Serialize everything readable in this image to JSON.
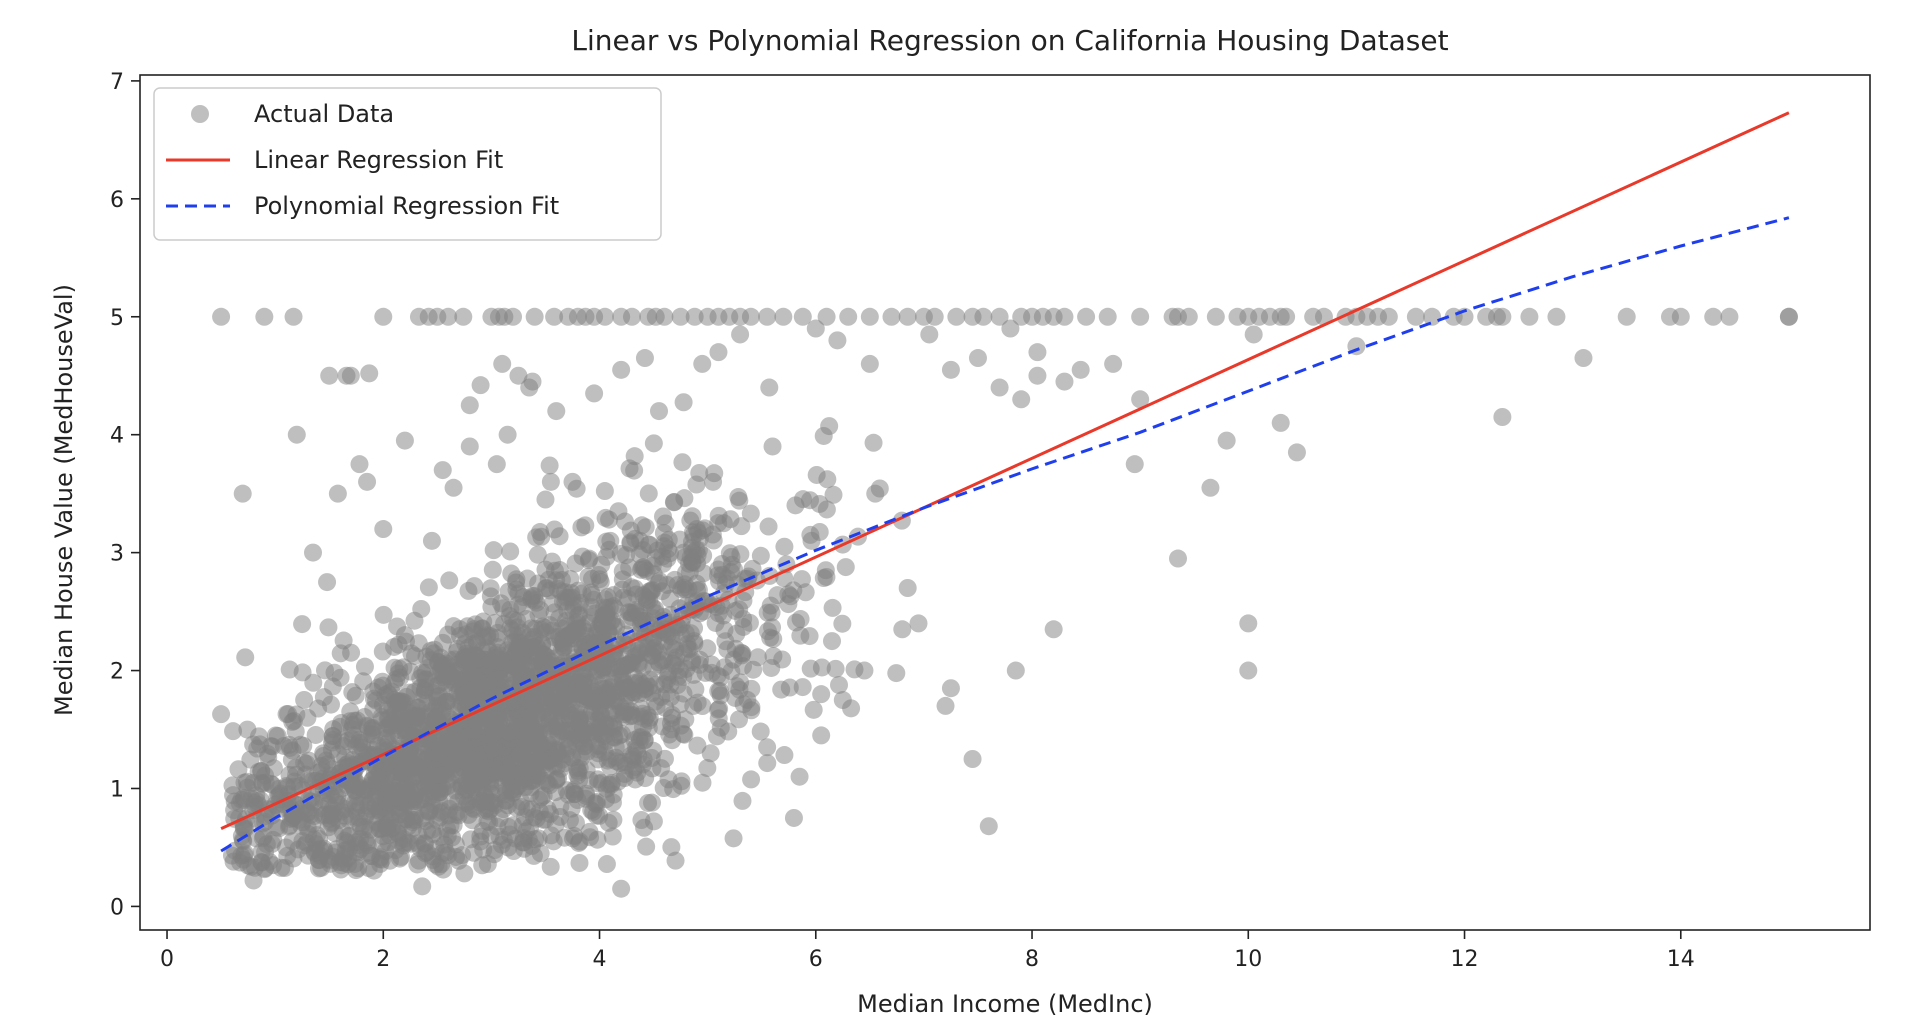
{
  "chart_data": {
    "type": "scatter",
    "title": "Linear vs Polynomial Regression on California Housing Dataset",
    "xlabel": "Median Income (MedInc)",
    "ylabel": "Median House Value (MedHouseVal)",
    "xlim": [
      -0.25,
      15.75
    ],
    "ylim": [
      -0.2,
      7.05
    ],
    "xticks": [
      0,
      2,
      4,
      6,
      8,
      10,
      12,
      14
    ],
    "yticks": [
      0,
      1,
      2,
      3,
      4,
      5,
      6,
      7
    ],
    "legend_position": "top-left",
    "grid": false,
    "series": [
      {
        "name": "Actual Data",
        "kind": "scatter",
        "color": "#808080",
        "opacity": 0.5,
        "x": [
          0.5,
          0.9,
          1.17,
          2.0,
          2.33,
          2.42,
          2.5,
          2.6,
          2.74,
          3.0,
          3.07,
          3.12,
          3.2,
          3.4,
          3.58,
          3.71,
          3.8,
          3.87,
          3.95,
          4.05,
          4.2,
          4.3,
          4.45,
          4.52,
          4.6,
          4.75,
          4.88,
          5.0,
          5.1,
          5.2,
          5.3,
          5.4,
          5.55,
          5.7,
          5.88,
          6.1,
          6.3,
          6.5,
          6.7,
          6.85,
          7.0,
          7.1,
          7.3,
          7.45,
          7.55,
          7.7,
          7.9,
          8.0,
          8.1,
          8.2,
          8.3,
          8.5,
          8.7,
          9.0,
          9.3,
          9.35,
          9.45,
          9.7,
          9.9,
          10.0,
          10.1,
          10.2,
          10.3,
          10.35,
          10.6,
          10.7,
          10.9,
          11.0,
          11.1,
          11.2,
          11.3,
          11.55,
          11.7,
          11.9,
          12.0,
          12.2,
          12.3,
          12.35,
          12.6,
          12.85,
          13.5,
          13.9,
          14.0,
          14.3,
          14.45,
          15.0,
          15.0,
          1.66,
          1.87,
          3.1,
          3.38,
          2.8,
          2.9,
          3.25,
          3.6,
          3.95,
          4.2,
          4.42,
          4.95,
          5.1,
          5.3,
          5.57,
          6.0,
          6.2,
          6.5,
          7.05,
          7.25,
          7.5,
          7.8,
          8.05,
          8.45,
          8.75,
          8.3,
          7.7,
          7.9,
          9.0,
          10.05,
          10.3,
          10.45,
          11.0,
          12.35,
          13.1,
          9.35,
          10.0,
          10.0,
          9.8,
          9.65,
          8.05,
          8.95,
          8.2,
          7.85,
          7.2,
          7.25,
          7.6,
          7.45,
          4.2,
          2.36,
          2.75,
          0.8,
          0.98,
          1.1,
          0.72,
          0.5,
          0.7,
          1.5,
          1.7,
          1.78,
          1.2,
          2.45,
          3.05,
          1.85,
          2.0,
          1.58,
          1.35,
          1.48,
          2.2,
          2.1,
          2.55,
          3.55,
          6.05,
          5.3,
          4.8,
          5.55,
          5.85,
          6.05,
          6.25,
          6.45,
          6.85,
          6.95,
          5.95,
          6.15,
          6.55,
          6.8,
          4.9,
          5.15,
          5.05,
          5.6,
          3.5,
          3.75,
          4.1,
          2.2,
          2.55,
          2.65,
          3.35,
          2.8,
          3.15,
          4.55
        ],
        "y": [
          5.0,
          5.0,
          5.0,
          5.0,
          5.0,
          5.0,
          5.0,
          5.0,
          5.0,
          5.0,
          5.0,
          5.0,
          5.0,
          5.0,
          5.0,
          5.0,
          5.0,
          5.0,
          5.0,
          5.0,
          5.0,
          5.0,
          5.0,
          5.0,
          5.0,
          5.0,
          5.0,
          5.0,
          5.0,
          5.0,
          5.0,
          5.0,
          5.0,
          5.0,
          5.0,
          5.0,
          5.0,
          5.0,
          5.0,
          5.0,
          5.0,
          5.0,
          5.0,
          5.0,
          5.0,
          5.0,
          5.0,
          5.0,
          5.0,
          5.0,
          5.0,
          5.0,
          5.0,
          5.0,
          5.0,
          5.0,
          5.0,
          5.0,
          5.0,
          5.0,
          5.0,
          5.0,
          5.0,
          5.0,
          5.0,
          5.0,
          5.0,
          5.0,
          5.0,
          5.0,
          5.0,
          5.0,
          5.0,
          5.0,
          5.0,
          5.0,
          5.0,
          5.0,
          5.0,
          5.0,
          5.0,
          5.0,
          5.0,
          5.0,
          5.0,
          5.0,
          5.0,
          4.5,
          4.52,
          4.6,
          4.45,
          4.25,
          4.42,
          4.5,
          4.2,
          4.35,
          4.55,
          4.65,
          4.6,
          4.7,
          4.85,
          4.4,
          4.9,
          4.8,
          4.6,
          4.85,
          4.55,
          4.65,
          4.9,
          4.7,
          4.55,
          4.6,
          4.45,
          4.4,
          4.3,
          4.3,
          4.85,
          4.1,
          3.85,
          4.75,
          4.15,
          4.65,
          2.95,
          2.4,
          2.0,
          3.95,
          3.55,
          4.5,
          3.75,
          2.35,
          2.0,
          1.7,
          1.85,
          0.68,
          1.25,
          0.15,
          0.17,
          0.28,
          0.22,
          0.35,
          0.5,
          0.45,
          1.63,
          3.5,
          4.5,
          4.5,
          3.75,
          4.0,
          3.1,
          3.75,
          3.6,
          3.2,
          3.5,
          3.0,
          2.75,
          2.3,
          2.2,
          2.05,
          3.6,
          1.45,
          1.9,
          2.55,
          1.35,
          1.1,
          1.8,
          1.75,
          2.0,
          2.7,
          2.4,
          3.15,
          2.25,
          3.5,
          2.35,
          3.2,
          3.25,
          3.6,
          3.9,
          3.45,
          3.6,
          3.1,
          3.95,
          3.7,
          3.55,
          4.4,
          3.9,
          4.0,
          4.2
        ]
      },
      {
        "name": "Linear Regression Fit",
        "kind": "line",
        "color": "#e8392a",
        "dash": "solid",
        "x": [
          0.5,
          15.0
        ],
        "y": [
          0.66,
          6.73
        ]
      },
      {
        "name": "Polynomial Regression Fit",
        "kind": "line",
        "color": "#1f3fef",
        "dash": "dashed",
        "x": [
          0.5,
          1.0,
          2.0,
          3.0,
          4.0,
          5.0,
          6.0,
          7.0,
          8.0,
          9.0,
          10.0,
          11.0,
          12.0,
          13.0,
          14.0,
          15.0
        ],
        "y": [
          0.47,
          0.75,
          1.27,
          1.76,
          2.21,
          2.63,
          3.02,
          3.38,
          3.71,
          4.02,
          4.37,
          4.72,
          5.05,
          5.34,
          5.6,
          5.84
        ]
      }
    ],
    "dense_cluster": {
      "note_kind": "procedural",
      "x_range": [
        0.6,
        6.8
      ],
      "y_center_slope": 0.36,
      "y_center_intercept": 0.45,
      "count": 2600
    }
  }
}
